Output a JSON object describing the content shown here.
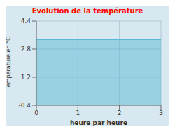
{
  "chart_data": {
    "type": "area",
    "title": "Evolution de la température",
    "xlabel": "heure par heure",
    "ylabel": "Température en °C",
    "x": [
      0,
      3
    ],
    "values": [
      3.35,
      3.35
    ],
    "color": "#5ab8d4",
    "xlim": [
      0,
      3
    ],
    "ylim": [
      -0.4,
      4.4
    ],
    "xticks": [
      0,
      1,
      2,
      3
    ],
    "yticks": [
      -0.4,
      1.2,
      2.8,
      4.4
    ],
    "grid": true
  }
}
